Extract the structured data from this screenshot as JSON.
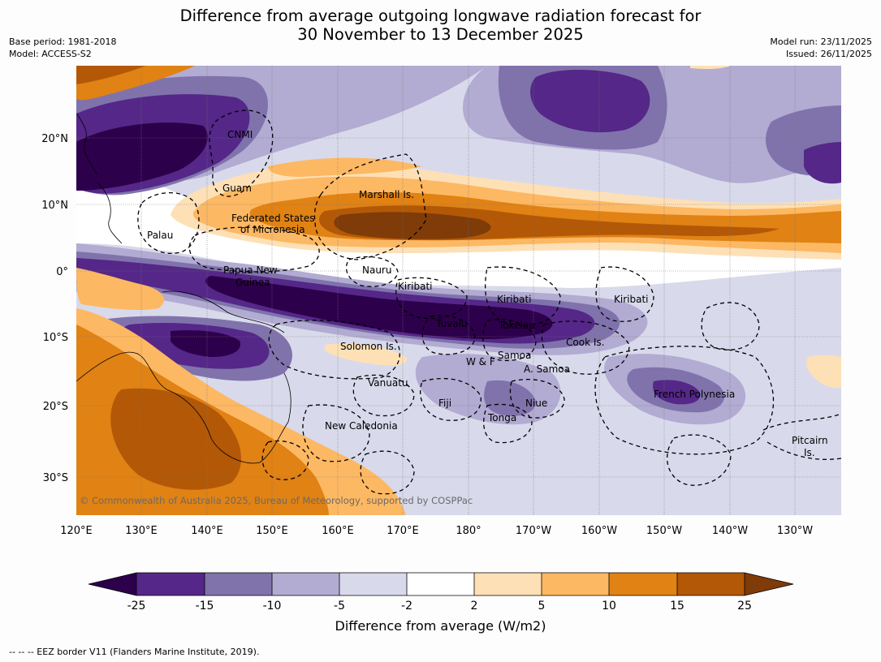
{
  "title": {
    "line1": "Difference from average outgoing longwave radiation forecast for",
    "line2": "30 November to 13 December 2025"
  },
  "meta_left": {
    "base_period": "Base period: 1981-2018",
    "model": "Model: ACCESS-S2"
  },
  "meta_right": {
    "model_run": "Model run: 23/11/2025",
    "issued": "Issued: 26/11/2025"
  },
  "map": {
    "lon_labels": [
      "120°E",
      "130°E",
      "140°E",
      "150°E",
      "160°E",
      "170°E",
      "180°",
      "170°W",
      "160°W",
      "150°W",
      "140°W",
      "130°W"
    ],
    "lat_labels": [
      "20°N",
      "10°N",
      "0°",
      "10°S",
      "20°S",
      "30°S"
    ],
    "places": {
      "cnmi": "CNMI",
      "guam": "Guam",
      "marshall": "Marshall Is.",
      "fsm1": "Federated States",
      "fsm2": "of Micronesia",
      "palau": "Palau",
      "nauru": "Nauru",
      "png1": "Papua New",
      "png2": "Guinea",
      "kiribati_w": "Kiribati",
      "kiribati_c": "Kiribati",
      "kiribati_e": "Kiribati",
      "tuvalu": "Tuvalu",
      "tokelau": "Tokelau",
      "cook": "Cook Is.",
      "solomon": "Solomon Is.",
      "wf": "W & F",
      "samoa": "Samoa",
      "asamoa": "A. Samoa",
      "vanuatu": "Vanuatu",
      "fiji": "Fiji",
      "niue": "Niue",
      "tonga": "Tonga",
      "frpoly": "French Polynesia",
      "newcal": "New Caledonia",
      "pitcairn1": "Pitcairn",
      "pitcairn2": "Is."
    },
    "copyright": "© Commonwealth of Australia 2025, Bureau of Meteorology, supported by COSPPac"
  },
  "colorbar": {
    "colors": {
      "lt_neg25": "#2d004b",
      "neg25_neg15": "#542788",
      "neg15_neg10": "#8073ac",
      "neg10_neg5": "#b2abd2",
      "neg5_neg2": "#d8daeb",
      "neg2_2": "#ffffff",
      "pos2_5": "#fee0b6",
      "pos5_10": "#fdb863",
      "pos10_15": "#e08214",
      "pos15_25": "#b35806",
      "gt_25": "#7f3b08"
    },
    "ticks": [
      "-25",
      "-15",
      "-10",
      "-5",
      "-2",
      "2",
      "5",
      "10",
      "15",
      "25"
    ],
    "label": "Difference from average (W/m2)"
  },
  "footer": "--  --  -- EEZ border V11 (Flanders Marine Institute, 2019)."
}
